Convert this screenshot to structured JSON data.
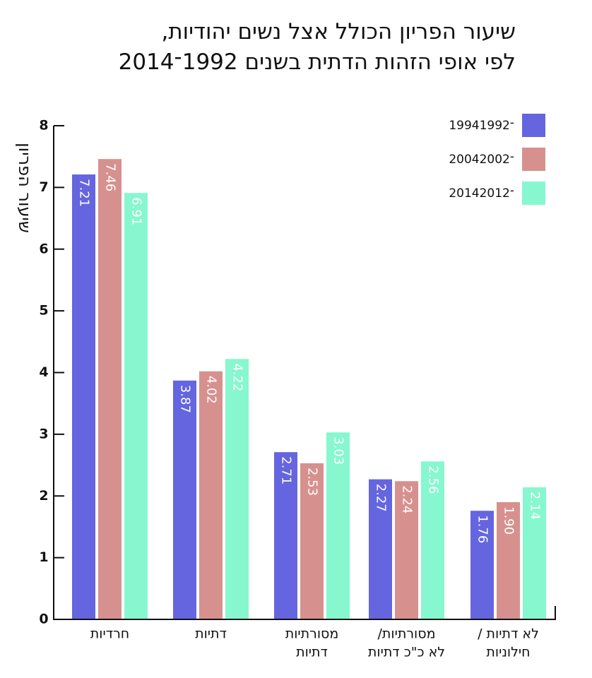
{
  "chart_data": {
    "type": "bar",
    "title_lines": [
      "שיעור הפריון הכולל אצל נשים יהודיות,",
      "לפי אופי הזהות הדתית בשנים 1992־2014"
    ],
    "ylabel": "שיעור הפריון",
    "xlabel": "",
    "ylim": [
      0,
      8
    ],
    "yticks": [
      "0",
      "1",
      "2",
      "3",
      "4",
      "5",
      "6",
      "7",
      "8"
    ],
    "grid": false,
    "legend_position": "top-right",
    "categories": [
      [
        "חרדיות"
      ],
      [
        "דתיות"
      ],
      [
        "מסורתיות",
        "דתיות"
      ],
      [
        "מסורתיות/",
        "לא כ\"כ דתיות"
      ],
      [
        "לא דתיות /",
        "חילוניות"
      ]
    ],
    "series": [
      {
        "name": "1994־1992",
        "color": "#6565e0",
        "values": [
          7.21,
          3.87,
          2.71,
          2.27,
          1.76
        ],
        "labels": [
          "7.21",
          "3.87",
          "2.71",
          "2.27",
          "1.76"
        ]
      },
      {
        "name": "2004־2002",
        "color": "#d6918f",
        "values": [
          7.46,
          4.02,
          2.53,
          2.24,
          1.9
        ],
        "labels": [
          "7.46",
          "4.02",
          "2.53",
          "2.24",
          "1.90"
        ]
      },
      {
        "name": "2014־2012",
        "color": "#86f7cf",
        "values": [
          6.91,
          4.22,
          3.03,
          2.56,
          2.14
        ],
        "labels": [
          "6.91",
          "4.22",
          "3.03",
          "2.56",
          "2.14"
        ]
      }
    ]
  }
}
